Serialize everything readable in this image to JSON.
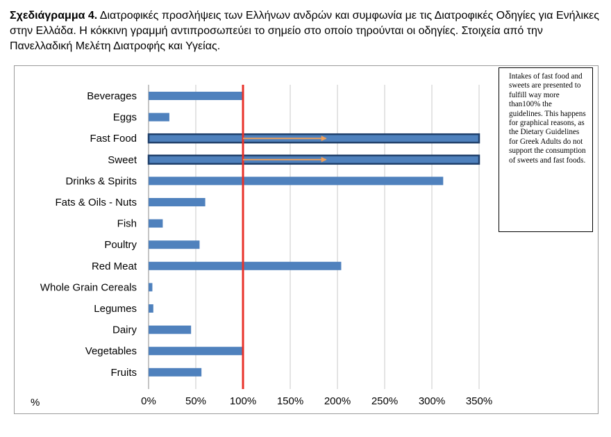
{
  "caption": {
    "label": "Σχεδιάγραμμα 4.",
    "text": " Διατροφικές προσλήψεις των Ελλήνων ανδρών και συμφωνία με τις Διατροφικές Οδηγίες για Ενήλικες στην Ελλάδα. Η κόκκινη γραμμή αντιπροσωπεύει το σημείο στο οποίο τηρούνται οι οδηγίες. Στοιχεία από την Πανελλαδική Μελέτη Διατροφής και Υγείας."
  },
  "note": "Intakes of fast food and sweets are presented to fulfill way more than100% the guidelines. This happens for graphical reasons, as the Dietary Guidelines for Greek Adults do not support the consumption of sweets and fast foods.",
  "chart_data": {
    "type": "bar",
    "orientation": "horizontal",
    "categories": [
      "Beverages",
      "Eggs",
      "Fast Food",
      "Sweet",
      "Drinks & Spirits",
      "Fats & Oils - Nuts",
      "Fish",
      "Poultry",
      "Red Meat",
      "Whole Grain Cereals",
      "Legumes",
      "Dairy",
      "Vegetables",
      "Fruits"
    ],
    "values": [
      100,
      22,
      350,
      350,
      312,
      60,
      15,
      54,
      204,
      4,
      5,
      45,
      100,
      56
    ],
    "highlighted": [
      "Fast Food",
      "Sweet"
    ],
    "xlim": [
      0,
      350
    ],
    "xticks": [
      "0%",
      "50%",
      "100%",
      "150%",
      "200%",
      "250%",
      "300%",
      "350%"
    ],
    "xtick_values": [
      0,
      50,
      100,
      150,
      200,
      250,
      300,
      350
    ],
    "xlabel": "%",
    "reference_line": 100,
    "arrows": [
      {
        "category": "Fast Food",
        "from": 100,
        "to": 188
      },
      {
        "category": "Sweet",
        "from": 100,
        "to": 188
      }
    ],
    "colors": {
      "bar": "#4f81bd",
      "bar_edge": "#1f3f6a",
      "reference": "#e8322a",
      "arrow": "#f0a05a",
      "grid": "#c8c8c8"
    }
  }
}
